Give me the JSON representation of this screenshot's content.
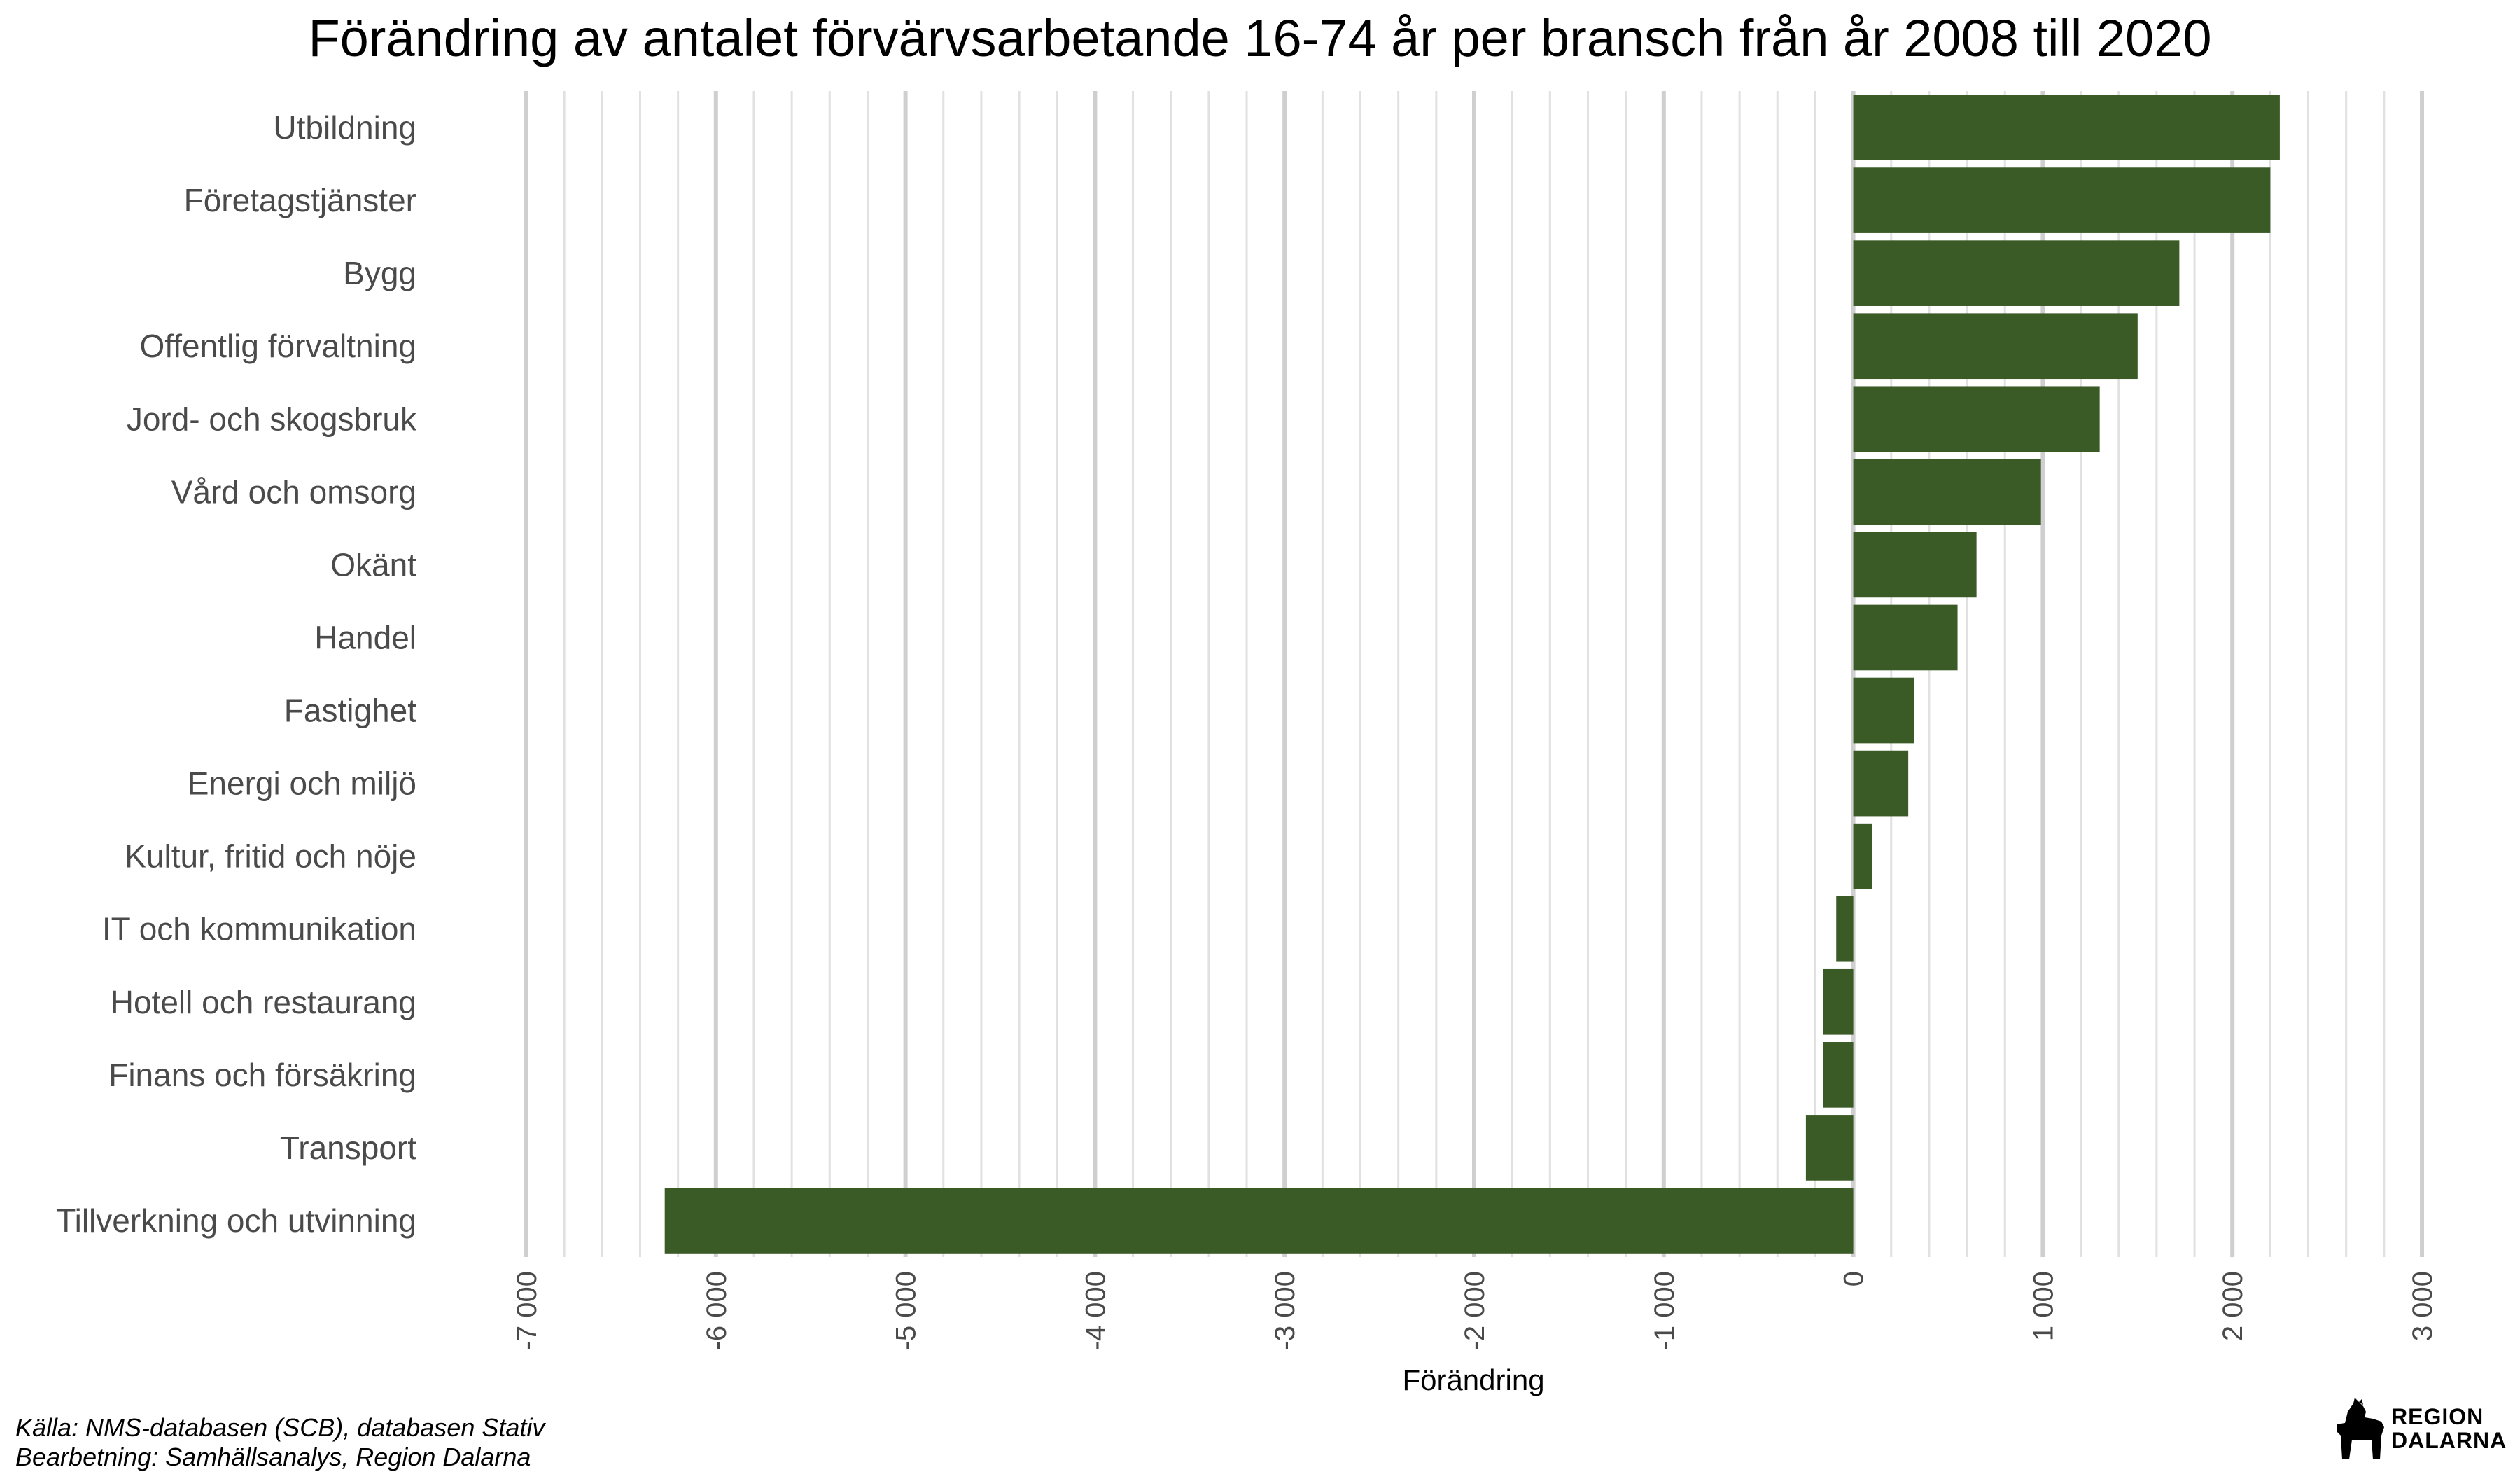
{
  "chart_data": {
    "type": "bar",
    "orientation": "horizontal",
    "title": "Förändring av antalet förvärvsarbetande 16-74 år per bransch från år 2008 till 2020",
    "xlabel": "Förändring",
    "ylabel": "",
    "xlim": [
      -7000,
      3000
    ],
    "ticks": [
      -7000,
      -6000,
      -5000,
      -4000,
      -3000,
      -2000,
      -1000,
      0,
      1000,
      2000,
      3000
    ],
    "tick_labels": [
      "-7 000",
      "-6 000",
      "-5 000",
      "-4 000",
      "-3 000",
      "-2 000",
      "-1 000",
      "0",
      "1 000",
      "2 000",
      "3 000"
    ],
    "grid": true,
    "bar_color": "#3a5a26",
    "categories": [
      "Utbildning",
      "Företagstjänster",
      "Bygg",
      "Offentlig förvaltning",
      "Jord- och skogsbruk",
      "Vård och omsorg",
      "Okänt",
      "Handel",
      "Fastighet",
      "Energi och miljö",
      "Kultur, fritid och nöje",
      "IT och kommunikation",
      "Hotell och restaurang",
      "Finans och försäkring",
      "Transport",
      "Tillverkning och utvinning"
    ],
    "values": [
      2250,
      2200,
      1720,
      1500,
      1300,
      990,
      650,
      550,
      320,
      290,
      100,
      -90,
      -160,
      -160,
      -250,
      -6270
    ]
  },
  "source": {
    "line1": "Källa: NMS-databasen (SCB), databasen Stativ",
    "line2": "Bearbetning: Samhällsanalys, Region Dalarna"
  },
  "logo": {
    "line1": "REGION",
    "line2": "DALARNA"
  }
}
